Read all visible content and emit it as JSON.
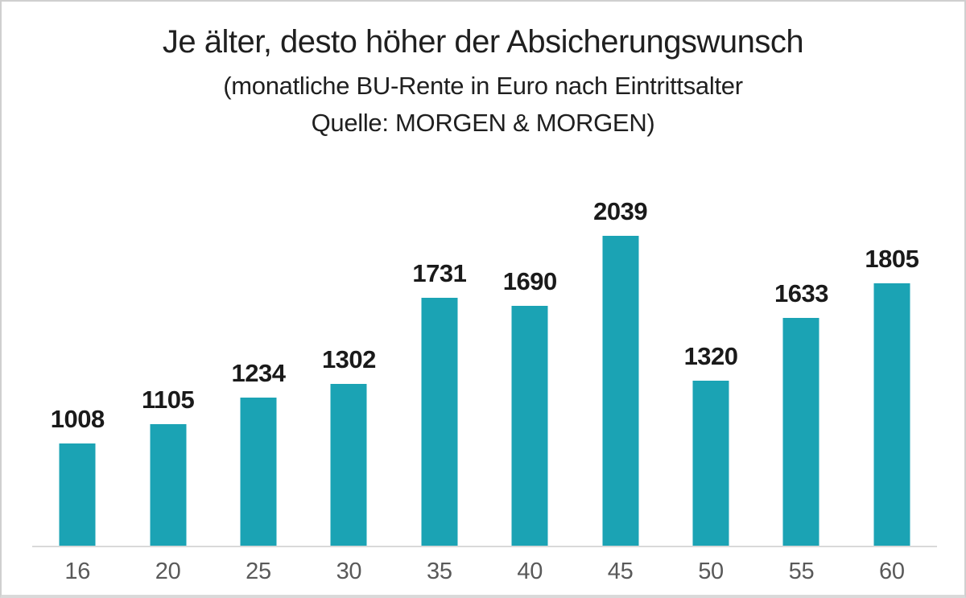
{
  "chart": {
    "title": "Je älter, desto höher der Absicherungswunsch",
    "subtitle_line1": "(monatliche BU-Rente in Euro nach Eintrittsalter",
    "subtitle_line2": "Quelle: MORGEN & MORGEN)"
  },
  "chart_data": {
    "type": "bar",
    "title": "Je älter, desto höher der Absicherungswunsch",
    "subtitle": "(monatliche BU-Rente in Euro nach Eintrittsalter Quelle: MORGEN & MORGEN)",
    "categories": [
      "16",
      "20",
      "25",
      "30",
      "35",
      "40",
      "45",
      "50",
      "55",
      "60"
    ],
    "values": [
      1008,
      1105,
      1234,
      1302,
      1731,
      1690,
      2039,
      1320,
      1633,
      1805
    ],
    "xlabel": "",
    "ylabel": "",
    "ylim": [
      500,
      2100
    ],
    "grid": false,
    "legend": false,
    "data_labels": true,
    "bar_color": "#1ba3b4",
    "axis_line_color": "#d9d9d9",
    "tick_label_color": "#595959",
    "value_label_color": "#1a1a1a"
  }
}
